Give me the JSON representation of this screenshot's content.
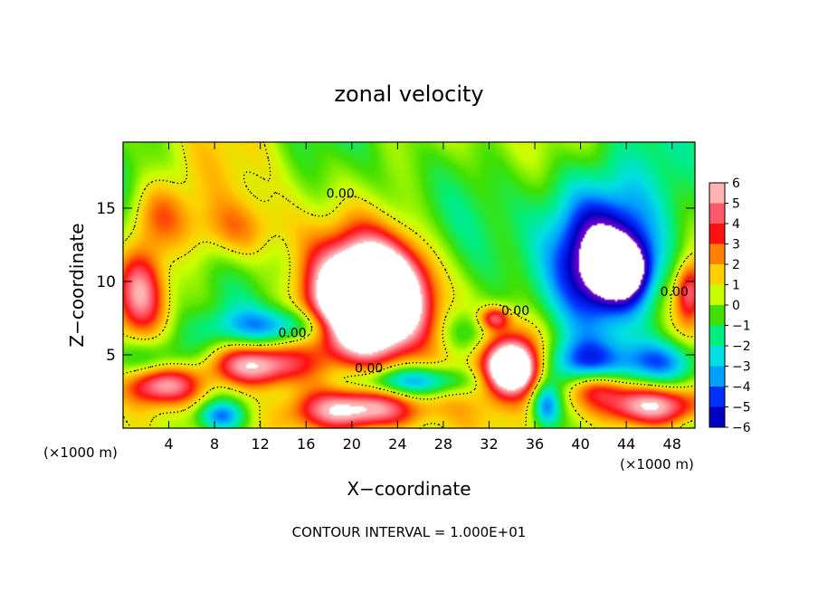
{
  "chart_data": {
    "type": "heatmap",
    "title": "zonal velocity",
    "xlabel": "X−coordinate",
    "ylabel": "Z−coordinate",
    "x_unit_label": "(×1000 m)",
    "xlim": [
      0,
      50
    ],
    "ylim": [
      0,
      19.5
    ],
    "x_ticks": [
      4,
      8,
      12,
      16,
      20,
      24,
      28,
      32,
      36,
      40,
      44,
      48
    ],
    "y_ticks": [
      5,
      10,
      15
    ],
    "footer": "CONTOUR INTERVAL = 1.000E+01",
    "colorbar": {
      "levels": [
        6,
        5,
        4,
        3,
        2,
        1,
        0,
        -1,
        -2,
        -3,
        -4,
        -5,
        -6
      ],
      "colors": [
        "#ffb3b3",
        "#ff5a6a",
        "#ff1010",
        "#ff8000",
        "#ffd000",
        "#c8ff00",
        "#40e000",
        "#00ee80",
        "#00e0e0",
        "#00a0ff",
        "#0030ff",
        "#0000c0",
        "#6600cc"
      ]
    },
    "contour_labels": [
      {
        "text": "0.00",
        "x": 19.0,
        "y": 15.7
      },
      {
        "text": "0.00",
        "x": 14.8,
        "y": 6.2
      },
      {
        "text": "0.00",
        "x": 34.3,
        "y": 7.7
      },
      {
        "text": "0.00",
        "x": 21.5,
        "y": 3.8
      },
      {
        "text": "0.00",
        "x": 48.2,
        "y": 9.0
      }
    ],
    "field_features": [
      {
        "v": 7,
        "x": 21.5,
        "y": 8.2,
        "rx": 4.0,
        "ry": 3.0
      },
      {
        "v": 5,
        "x": 21.5,
        "y": 8.5,
        "rx": 5.5,
        "ry": 4.2
      },
      {
        "v": 4,
        "x": 22.0,
        "y": 10.0,
        "rx": 4.5,
        "ry": 3.0
      },
      {
        "v": 7,
        "x": 3.5,
        "y": 3.0,
        "rx": 3.5,
        "ry": 1.4
      },
      {
        "v": 7,
        "x": 11.5,
        "y": 4.3,
        "rx": 4.5,
        "ry": 1.5
      },
      {
        "v": 7,
        "x": 34.0,
        "y": 4.0,
        "rx": 2.0,
        "ry": 1.5
      },
      {
        "v": 4,
        "x": 34.5,
        "y": 5.0,
        "rx": 3.0,
        "ry": 2.5
      },
      {
        "v": 7,
        "x": 20.5,
        "y": 1.2,
        "rx": 5.5,
        "ry": 1.5
      },
      {
        "v": 6,
        "x": 46.0,
        "y": 1.5,
        "rx": 5.0,
        "ry": 1.4
      },
      {
        "v": 5,
        "x": 1.5,
        "y": 9.5,
        "rx": 2.2,
        "ry": 3.0
      },
      {
        "v": 3,
        "x": 3.0,
        "y": 14.5,
        "rx": 3.0,
        "ry": 2.5
      },
      {
        "v": 2,
        "x": 10.0,
        "y": 13.5,
        "rx": 4.0,
        "ry": 2.0
      },
      {
        "v": 4,
        "x": 32.5,
        "y": 7.5,
        "rx": 1.3,
        "ry": 0.8
      },
      {
        "v": 4,
        "x": 41.5,
        "y": 2.8,
        "rx": 2.5,
        "ry": 1.2
      },
      {
        "v": 4,
        "x": 49.5,
        "y": 9.3,
        "rx": 1.2,
        "ry": 2.0
      },
      {
        "v": -7,
        "x": 43.5,
        "y": 10.8,
        "rx": 2.2,
        "ry": 1.8
      },
      {
        "v": -5,
        "x": 42.0,
        "y": 11.5,
        "rx": 4.2,
        "ry": 3.5
      },
      {
        "v": -3,
        "x": 42.5,
        "y": 12.0,
        "rx": 6.0,
        "ry": 5.5
      },
      {
        "v": -2,
        "x": 39.5,
        "y": 15.5,
        "rx": 5.0,
        "ry": 4.0
      },
      {
        "v": -4,
        "x": 3.0,
        "y": 4.0,
        "rx": 5.0,
        "ry": 2.2
      },
      {
        "v": -3,
        "x": 14.0,
        "y": 7.0,
        "rx": 6.0,
        "ry": 1.2
      },
      {
        "v": -4,
        "x": 47.0,
        "y": 4.5,
        "rx": 3.5,
        "ry": 1.5
      },
      {
        "v": -3,
        "x": 40.0,
        "y": 4.5,
        "rx": 3.5,
        "ry": 1.5
      },
      {
        "v": -4,
        "x": 37.0,
        "y": 1.5,
        "rx": 1.2,
        "ry": 1.5
      },
      {
        "v": -4,
        "x": 25.5,
        "y": 3.2,
        "rx": 5.0,
        "ry": 1.0
      },
      {
        "v": -2,
        "x": 30.5,
        "y": 6.5,
        "rx": 2.5,
        "ry": 1.5
      },
      {
        "v": -4,
        "x": 8.5,
        "y": 0.8,
        "rx": 2.0,
        "ry": 1.0
      }
    ]
  }
}
